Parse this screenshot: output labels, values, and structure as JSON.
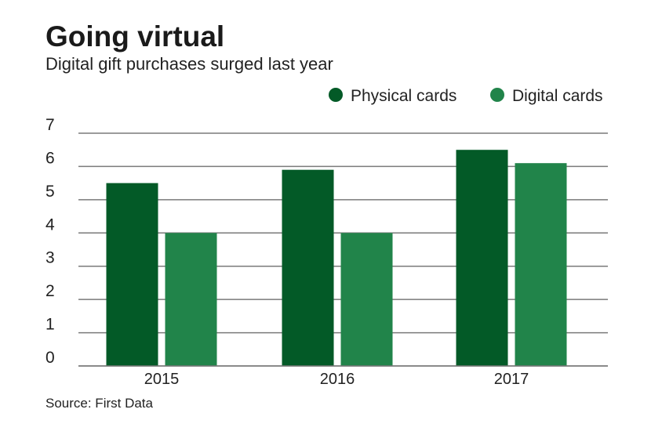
{
  "chart_data": {
    "type": "bar",
    "title": "Going virtual",
    "subtitle": "Digital gift purchases surged last year",
    "source": "Source: First Data",
    "categories": [
      "2015",
      "2016",
      "2017"
    ],
    "series": [
      {
        "name": "Physical cards",
        "values": [
          5.5,
          5.9,
          6.5
        ],
        "color": "#035a27"
      },
      {
        "name": "Digital cards",
        "values": [
          4.0,
          4.0,
          6.1
        ],
        "color": "#21844a"
      }
    ],
    "yticks": [
      0,
      1,
      2,
      3,
      4,
      5,
      6,
      7
    ],
    "ylim": [
      0,
      7
    ],
    "xlabel": "",
    "ylabel": "",
    "grid": true,
    "legend": "top-right"
  }
}
